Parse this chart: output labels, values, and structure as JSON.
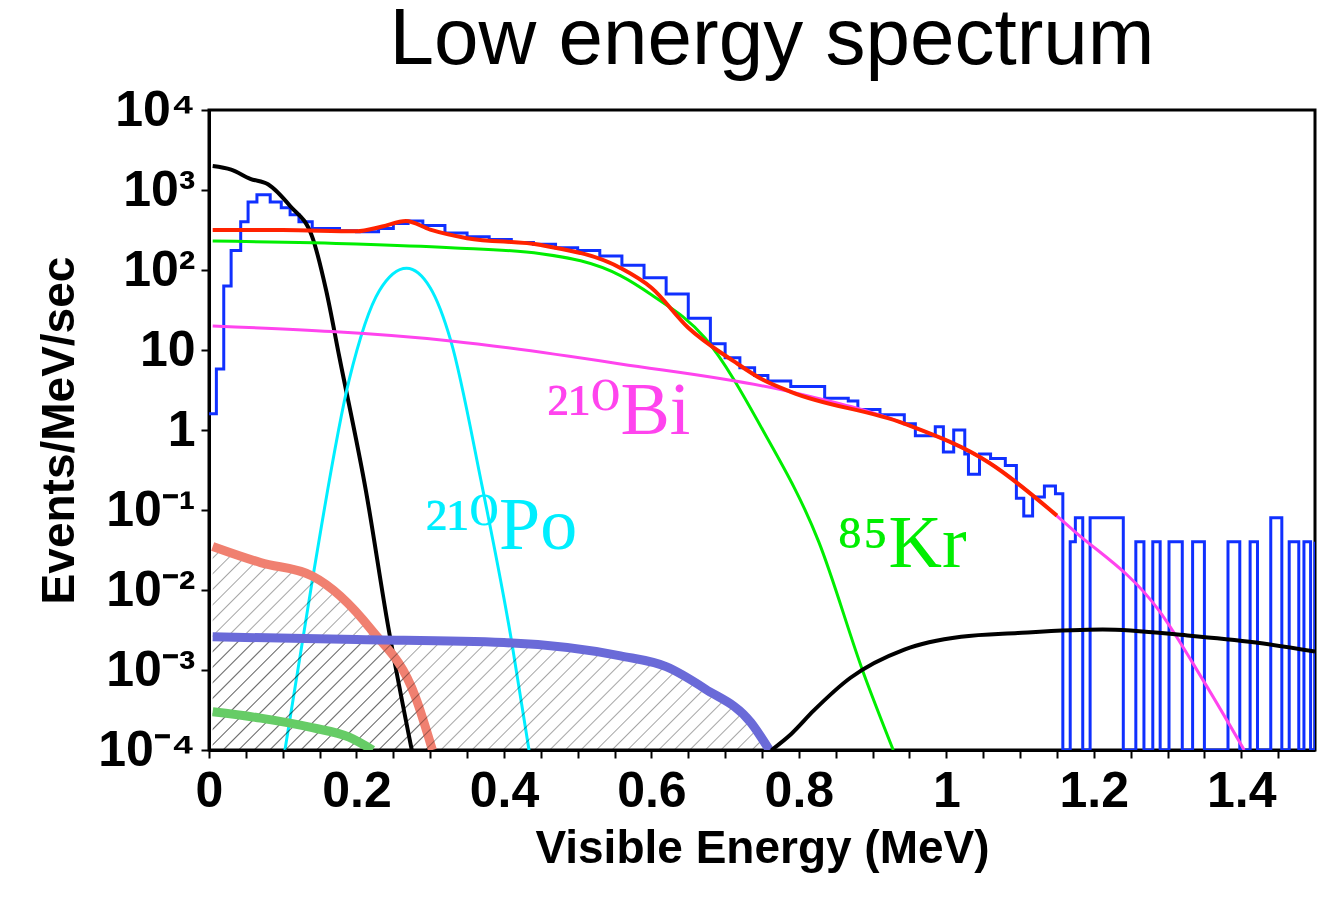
{
  "chart_data": {
    "type": "line",
    "title": "Low energy spectrum",
    "xlabel": "Visible Energy (MeV)",
    "ylabel": "Events/MeV/sec",
    "log": "y",
    "grid": false,
    "xlim": [
      0,
      1.5
    ],
    "ylim": [
      0.0001,
      10000
    ],
    "xticks": [
      0,
      {
        "value": 0.05,
        "label": null
      },
      {
        "value": 0.1,
        "label": null
      },
      {
        "value": 0.15,
        "label": null
      },
      0.2,
      {
        "value": 0.25,
        "label": null
      },
      {
        "value": 0.3,
        "label": null
      },
      {
        "value": 0.35,
        "label": null
      },
      0.4,
      {
        "value": 0.45,
        "label": null
      },
      {
        "value": 0.5,
        "label": null
      },
      {
        "value": 0.55,
        "label": null
      },
      0.6,
      {
        "value": 0.65,
        "label": null
      },
      {
        "value": 0.7,
        "label": null
      },
      {
        "value": 0.75,
        "label": null
      },
      0.8,
      {
        "value": 0.85,
        "label": null
      },
      {
        "value": 0.9,
        "label": null
      },
      {
        "value": 0.95,
        "label": null
      },
      1,
      {
        "value": 1.05,
        "label": null
      },
      {
        "value": 1.1,
        "label": null
      },
      {
        "value": 1.15,
        "label": null
      },
      1.2,
      {
        "value": 1.25,
        "label": null
      },
      {
        "value": 1.3,
        "label": null
      },
      {
        "value": 1.35,
        "label": null
      },
      1.4,
      {
        "value": 1.45,
        "label": null
      }
    ],
    "yticks": [
      {
        "value": 0.0001,
        "label": "10⁻⁴"
      },
      {
        "value": 0.001,
        "label": "10⁻³"
      },
      {
        "value": 0.01,
        "label": "10⁻²"
      },
      {
        "value": 0.1,
        "label": "10⁻¹"
      },
      1,
      10,
      {
        "value": 100,
        "label": "10²"
      },
      {
        "value": 1000,
        "label": "10³"
      },
      {
        "value": 10000,
        "label": "10⁴"
      }
    ],
    "series": [
      {
        "type": "step",
        "color": "#1030ff",
        "x": [
          0,
          0.01,
          0.02,
          0.03,
          0.043,
          0.053,
          0.065,
          0.083,
          0.098,
          0.11,
          0.122,
          0.14,
          0.177,
          0.2,
          0.23,
          0.25,
          0.27,
          0.29,
          0.32,
          0.35,
          0.38,
          0.41,
          0.44,
          0.47,
          0.5,
          0.53,
          0.56,
          0.59,
          0.62,
          0.65,
          0.68,
          0.7,
          0.72,
          0.74,
          0.758,
          0.789,
          0.835,
          0.867,
          0.88,
          0.91,
          0.943,
          0.958,
          0.985,
          0.996,
          1.01,
          1.025,
          1.03,
          1.045,
          1.06,
          1.08,
          1.095,
          1.105,
          1.117,
          1.133,
          1.148,
          1.158,
          1.168,
          1.175,
          1.185,
          1.195,
          1.24,
          1.257,
          1.268,
          1.28,
          1.29,
          1.302,
          1.32,
          1.334,
          1.35,
          1.382,
          1.398,
          1.412,
          1.422,
          1.44,
          1.455,
          1.465,
          1.478,
          1.485,
          1.494,
          1.5
        ],
        "values": [
          1.6,
          5.8,
          63,
          175,
          400,
          710,
          870,
          710,
          600,
          490,
          400,
          330,
          310,
          300,
          330,
          380,
          410,
          360,
          290,
          260,
          240,
          220,
          210,
          190,
          175,
          150,
          115,
          80,
          50,
          25,
          12,
          8,
          6,
          4.8,
          4.1,
          3.5,
          2.5,
          2.3,
          1.8,
          1.55,
          1.2,
          0.85,
          1.1,
          0.53,
          1.0,
          0.5,
          0.28,
          0.5,
          0.44,
          0.36,
          0.14,
          0.084,
          0.145,
          0.2,
          0.16,
          0.0001,
          0.04,
          0.08,
          0.0001,
          0.08,
          0.0001,
          0.04,
          0.0001,
          0.04,
          0.0001,
          0.04,
          0.0001,
          0.04,
          0.0001,
          0.04,
          0.0001,
          0.04,
          0.0001,
          0.08,
          0.0001,
          0.04,
          0.0001,
          0.04,
          0.0001,
          0.04
        ]
      },
      {
        "type": "line",
        "color": "#000000",
        "x": [
          0.005,
          0.03,
          0.056,
          0.08,
          0.11,
          0.14,
          0.159,
          0.177,
          0.213,
          0.243,
          0.275
        ],
        "values": [
          2000,
          1800,
          1380,
          1180,
          630,
          260,
          55,
          8,
          0.17,
          0.0035,
          0.0001
        ]
      },
      {
        "type": "line",
        "name": "²¹⁰Po",
        "color": "#00eeff",
        "x": [
          0.103,
          0.14,
          0.19,
          0.231,
          0.268,
          0.3,
          0.328,
          0.369,
          0.41,
          0.434
        ],
        "values": [
          0.0001,
          0.013,
          4.2,
          55,
          105,
          60,
          13,
          0.23,
          0.0024,
          0.0001
        ]
      },
      {
        "type": "line",
        "name": "⁸⁵Kr",
        "color": "#00ee00",
        "x": [
          0.005,
          0.2,
          0.328,
          0.45,
          0.558,
          0.6,
          0.673,
          0.751,
          0.827,
          0.888,
          0.928
        ],
        "values": [
          230,
          212,
          190,
          160,
          85,
          49,
          14,
          1.0,
          0.04,
          0.0009,
          0.0001
        ]
      },
      {
        "type": "line",
        "name": "²¹⁰Bi",
        "color": "#ff44ee",
        "x": [
          0.005,
          0.328,
          0.558,
          0.789,
          0.943,
          1.058,
          1.173,
          1.288,
          1.35,
          1.404
        ],
        "values": [
          20,
          13,
          6.7,
          3.0,
          1.2,
          0.39,
          0.055,
          0.0056,
          0.0007,
          0.0001
        ]
      },
      {
        "type": "line",
        "color": "#ff2200",
        "x": [
          0.005,
          0.1,
          0.2,
          0.235,
          0.267,
          0.3,
          0.35,
          0.45,
          0.558,
          0.6,
          0.65,
          0.712,
          0.75,
          0.789,
          0.943,
          1.058,
          1.15
        ],
        "values": [
          316,
          316,
          305,
          350,
          410,
          320,
          250,
          205,
          106,
          60,
          19,
          7.2,
          4.3,
          3.0,
          1.2,
          0.39,
          0.085
        ]
      },
      {
        "type": "area",
        "color": "#f08070",
        "x": [
          0.005,
          0.07,
          0.14,
          0.22,
          0.28,
          0.303
        ],
        "values": [
          0.035,
          0.022,
          0.015,
          0.0032,
          0.00046,
          0.0001
        ]
      },
      {
        "type": "area",
        "color": "#6a6ad8",
        "x": [
          0.005,
          0.2,
          0.4,
          0.558,
          0.62,
          0.673,
          0.735,
          0.76
        ],
        "values": [
          0.0026,
          0.0024,
          0.0022,
          0.0015,
          0.0011,
          0.00058,
          0.00022,
          0.0001
        ]
      },
      {
        "type": "line",
        "color": "#66cc66",
        "x": [
          0.005,
          0.07,
          0.14,
          0.19,
          0.222
        ],
        "values": [
          0.0003,
          0.00025,
          0.00019,
          0.000145,
          0.0001
        ]
      },
      {
        "type": "line",
        "color": "#000000",
        "x": [
          0.763,
          0.79,
          0.82,
          0.87,
          0.943,
          1.02,
          1.097,
          1.212,
          1.327,
          1.42,
          1.5
        ],
        "values": [
          0.0001,
          0.00016,
          0.00031,
          0.0008,
          0.0018,
          0.0026,
          0.0029,
          0.0032,
          0.0027,
          0.0022,
          0.0017
        ]
      }
    ]
  }
}
